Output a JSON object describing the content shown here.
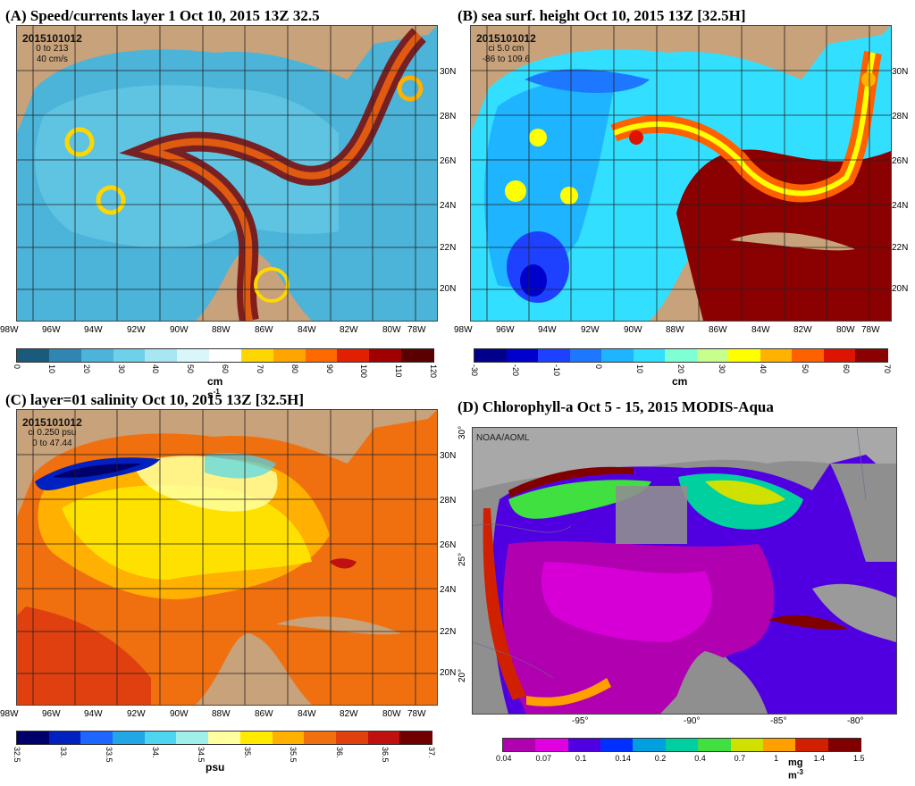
{
  "panels": {
    "A": {
      "title": "(A)    Speed/currents layer 1 Oct 10, 2015 13Z 32.5",
      "date_code": "2015101012",
      "info_line1": "0 to 213",
      "info_line2": "40 cm/s",
      "colorbar_ticks": [
        "0",
        "10",
        "20",
        "30",
        "40",
        "50",
        "60",
        "70",
        "80",
        "90",
        "100",
        "110",
        "120"
      ],
      "unit": "cm s",
      "unit_sup": "-1",
      "colors": [
        "#1a5a7a",
        "#2f86b0",
        "#4cb3d9",
        "#6fd0ea",
        "#a8e6f3",
        "#d9f6fa",
        "#ffffff",
        "#ffd700",
        "#ffa500",
        "#ff6a00",
        "#e02000",
        "#a00000",
        "#5a0000"
      ]
    },
    "B": {
      "title": "(B)    sea surf. height    Oct 10, 2015 13Z    [32.5H]",
      "date_code": "2015101012",
      "info_line1": "ci 5.0 cm",
      "info_line2": "-86 to 109.6",
      "colorbar_ticks": [
        "-30",
        "-20",
        "-10",
        "0",
        "10",
        "20",
        "30",
        "40",
        "50",
        "60",
        "70"
      ],
      "unit": "cm",
      "colors": [
        "#00008b",
        "#0000cd",
        "#1e40ff",
        "#1e78ff",
        "#1eb4ff",
        "#33dfff",
        "#7fffd4",
        "#c8ff8c",
        "#ffff00",
        "#ffb300",
        "#ff6000",
        "#dd1500",
        "#8b0000"
      ]
    },
    "C": {
      "title": "(C)    layer=01  salinity   Oct 10, 2015 13Z    [32.5H]",
      "date_code": "2015101012",
      "info_line1": "ci 0.250 psu",
      "info_line2": "0 to 47.44",
      "colorbar_ticks": [
        "32.5",
        "33.",
        "33.5",
        "34.",
        "34.5",
        "35.",
        "35.5",
        "36.",
        "36.5",
        "37."
      ],
      "unit": "psu",
      "colors": [
        "#00006a",
        "#0020c0",
        "#1e66ff",
        "#23a6e6",
        "#4ed6f0",
        "#9ff0e8",
        "#ffffa0",
        "#ffea00",
        "#ffb000",
        "#f07010",
        "#e04010",
        "#c01010",
        "#700000"
      ]
    },
    "D": {
      "title": "(D)  Chlorophyll-a      Oct 5 - 15, 2015     MODIS-Aqua",
      "source": "NOAA/AOML",
      "colorbar_ticks": [
        "0.04",
        "0.07",
        "0.1",
        "0.14",
        "0.2",
        "0.4",
        "0.7",
        "1",
        "1.4",
        "1.5"
      ],
      "unit": "mg m",
      "unit_sup": "-3",
      "lat_labels": [
        "30°",
        "25°",
        "20°"
      ],
      "lon_labels": [
        "-95°",
        "-90°",
        "-85°",
        "-80°"
      ],
      "colors": [
        "#b000b0",
        "#e000e0",
        "#5000e0",
        "#0030ff",
        "#00a0e0",
        "#00d0a0",
        "#40e040",
        "#d0e000",
        "#ffa000",
        "#d02000",
        "#800000"
      ]
    }
  },
  "lon_labels": [
    "98W",
    "96W",
    "94W",
    "92W",
    "90W",
    "88W",
    "86W",
    "84W",
    "82W",
    "80W",
    "78W"
  ],
  "lat_labels": [
    "30N",
    "28N",
    "26N",
    "24N",
    "22N",
    "20N"
  ],
  "land_color": "#c8a27a"
}
